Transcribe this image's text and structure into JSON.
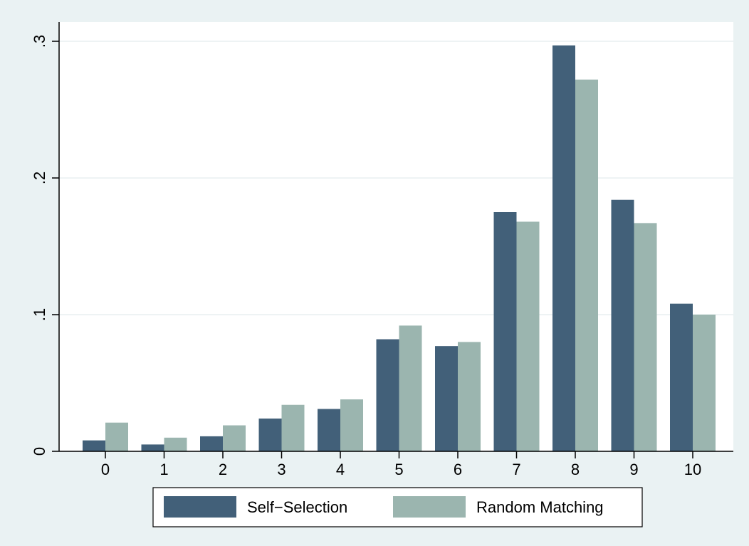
{
  "chart_data": {
    "type": "bar",
    "categories": [
      "0",
      "1",
      "2",
      "3",
      "4",
      "5",
      "6",
      "7",
      "8",
      "9",
      "10"
    ],
    "series": [
      {
        "name": "Self−Selection",
        "color": "#426079",
        "values": [
          0.008,
          0.005,
          0.011,
          0.024,
          0.031,
          0.082,
          0.077,
          0.175,
          0.297,
          0.184,
          0.108
        ]
      },
      {
        "name": "Random Matching",
        "color": "#9bb5af",
        "values": [
          0.021,
          0.01,
          0.019,
          0.034,
          0.038,
          0.092,
          0.08,
          0.168,
          0.272,
          0.167,
          0.1
        ]
      }
    ],
    "ylim": [
      0,
      0.3
    ],
    "yticks": [
      0,
      0.1,
      0.2,
      0.3
    ],
    "ytick_labels": [
      "0",
      ".1",
      ".2",
      ".3"
    ],
    "xlabel": "",
    "ylabel": "",
    "grid": true,
    "legend_position": "bottom",
    "background_color": "#eaf2f3",
    "plot_background_color": "#ffffff",
    "grid_color": "#e8eff0"
  }
}
